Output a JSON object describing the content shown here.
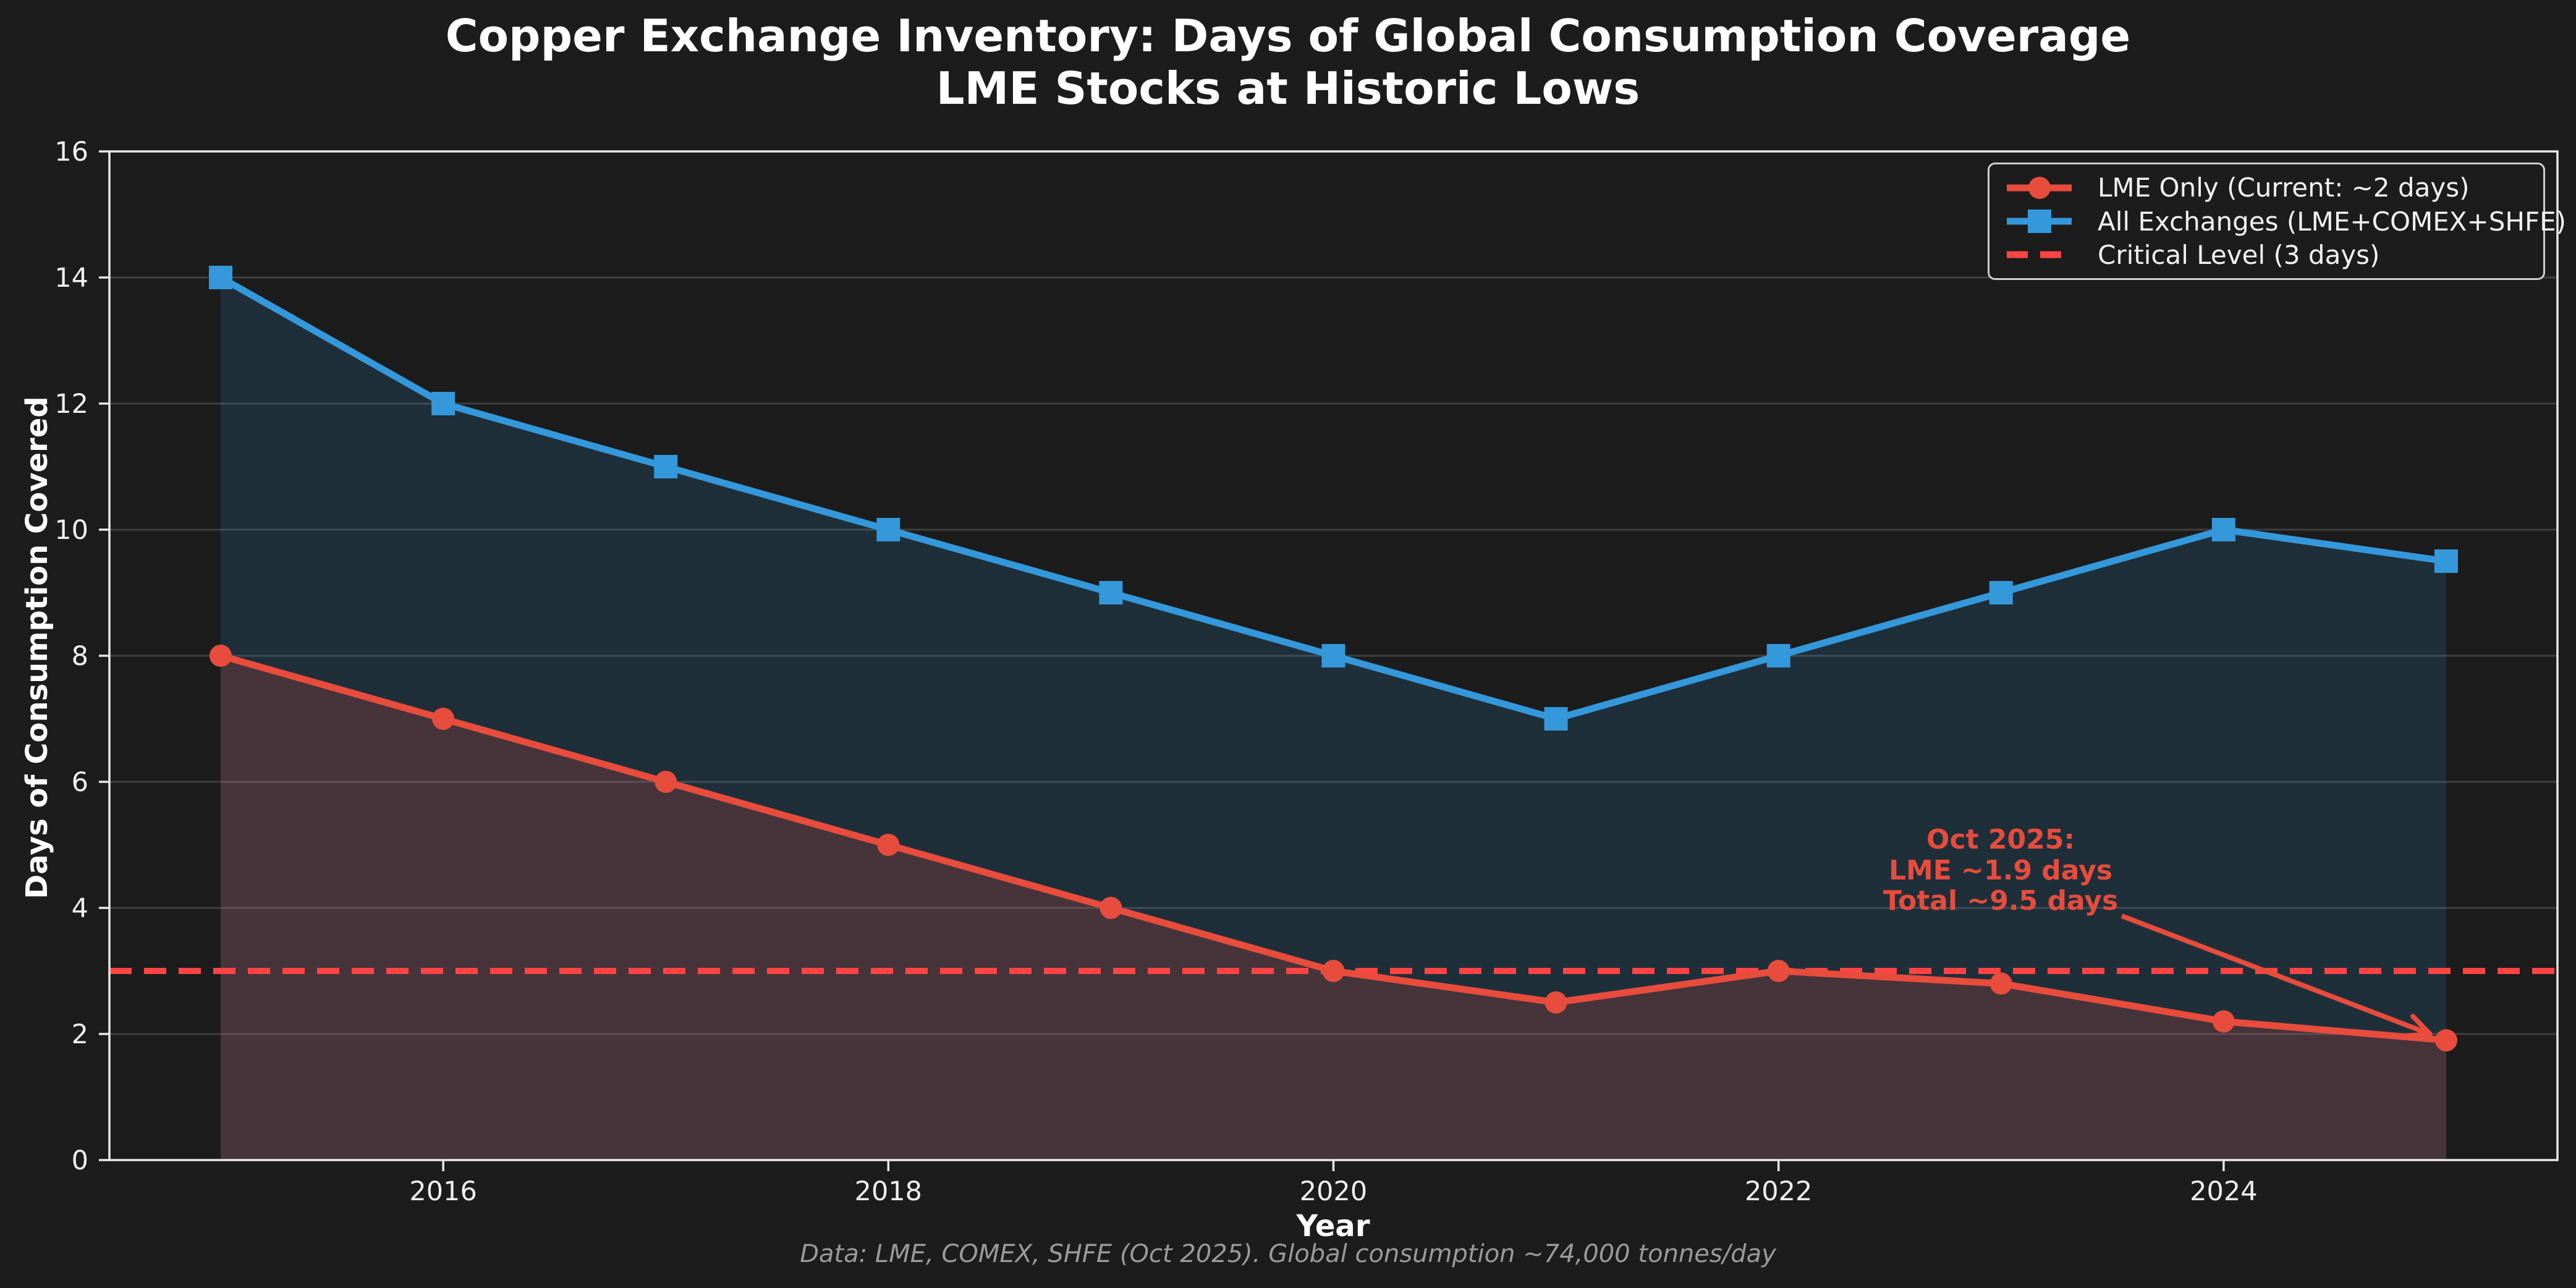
{
  "figure": {
    "title_line1": "Copper Exchange Inventory: Days of Global Consumption Coverage",
    "title_line2": "LME Stocks at Historic Lows",
    "background_color": "#1c1c1c"
  },
  "annotation": {
    "lines": [
      "Oct 2025:",
      "LME ~1.9 days",
      "Total ~9.5 days"
    ],
    "color": "#e74c3c"
  },
  "footnote": "Data: LME, COMEX, SHFE (Oct 2025). Global consumption ~74,000 tonnes/day",
  "chart_data": {
    "type": "line",
    "title": "Copper Exchange Inventory: Days of Global Consumption Coverage\nLME Stocks at Historic Lows",
    "xlabel": "Year",
    "ylabel": "Days of Consumption Covered",
    "x": [
      2015,
      2016,
      2017,
      2018,
      2019,
      2020,
      2021,
      2022,
      2023,
      2024,
      2025
    ],
    "series": [
      {
        "name": "LME Only (Current: ~2 days)",
        "color": "#e74c3c",
        "marker": "circle",
        "fill": true,
        "fill_alpha": 0.2,
        "values": [
          8,
          7,
          6,
          5,
          4,
          3,
          2.5,
          3,
          2.8,
          2.2,
          1.9
        ]
      },
      {
        "name": "All Exchanges (LME+COMEX+SHFE)",
        "color": "#3498db",
        "marker": "square",
        "fill": true,
        "fill_alpha": 0.16,
        "values": [
          14,
          12,
          11,
          10,
          9,
          8,
          7,
          8,
          9,
          10,
          9.5
        ]
      }
    ],
    "critical_line": {
      "label": "Critical Level (3 days)",
      "value": 3,
      "color": "#ff4444",
      "style": "dashed"
    },
    "xlim": [
      2014.5,
      2025.5
    ],
    "ylim": [
      0,
      16
    ],
    "xticks": [
      2016,
      2018,
      2020,
      2022,
      2024
    ],
    "yticks": [
      0,
      2,
      4,
      6,
      8,
      10,
      12,
      14,
      16
    ],
    "grid": "horizontal",
    "legend_position": "upper right",
    "annotation": {
      "text": "Oct 2025:\nLME ~1.9 days\nTotal ~9.5 days",
      "target_x": 2025,
      "target_y": 1.9
    },
    "axis_color": "#e8e8e8",
    "grid_color": "rgba(255,255,255,0.16)",
    "tick_label_color": "#f0f0f0"
  }
}
